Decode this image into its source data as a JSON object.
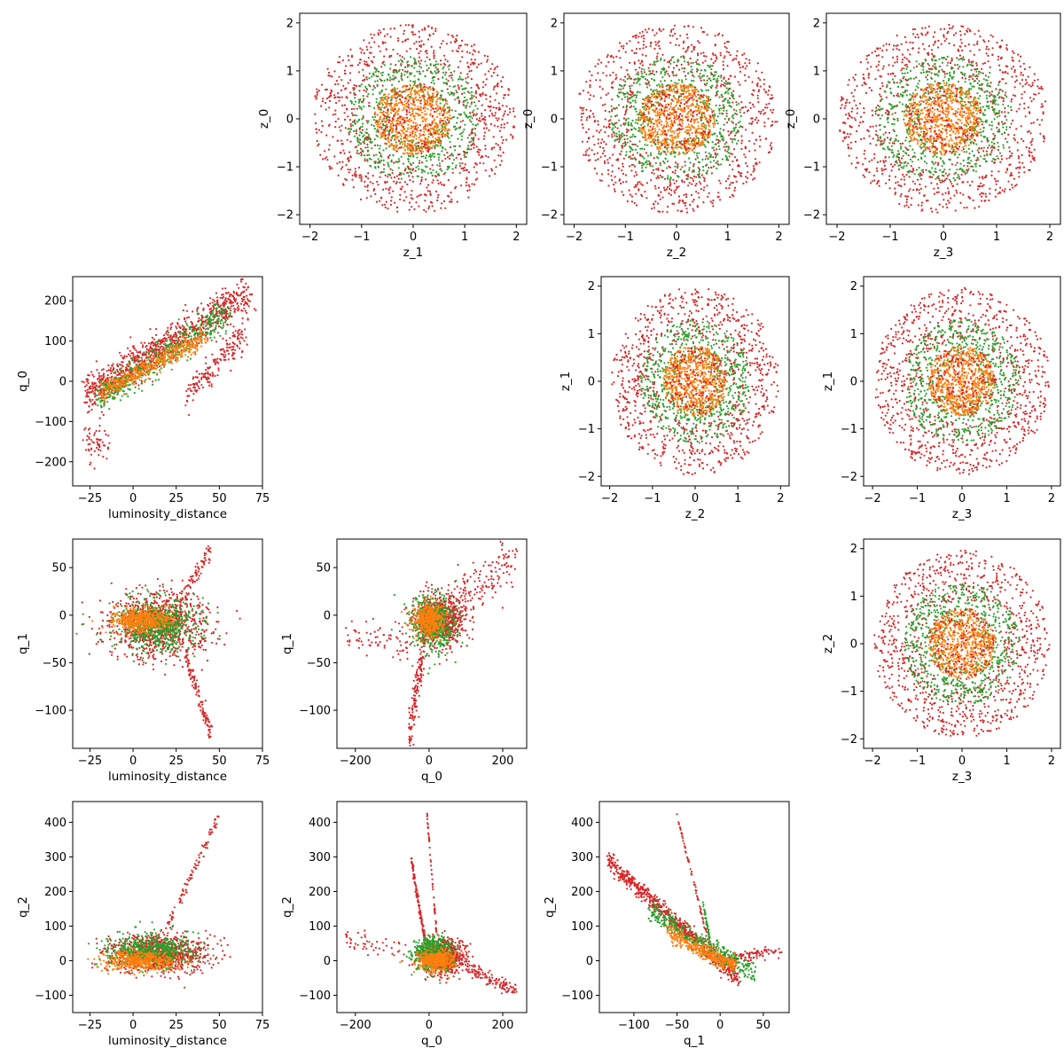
{
  "figure": {
    "background": "#ffffff"
  },
  "series_colors": [
    "#ff7f0e",
    "#2ca02c",
    "#d62728"
  ],
  "chart_data": [
    {
      "id": "z1-z0",
      "type": "scatter",
      "kind": "ring",
      "xlabel": "z_1",
      "ylabel": "z_0",
      "xlim": [
        -2.2,
        2.2
      ],
      "ylim": [
        -2.2,
        2.2
      ],
      "xticks": [
        -2,
        -1,
        0,
        1,
        2
      ],
      "xtick_labels": [
        "−2",
        "−1",
        "0",
        "1",
        "2"
      ],
      "yticks": [
        -2,
        -1,
        0,
        1,
        2
      ],
      "ytick_labels": [
        "−2",
        "−1",
        "0",
        "1",
        "2"
      ],
      "series": [
        {
          "color": "#d62728",
          "shape": "ring",
          "r_range": [
            0.9,
            1.97
          ],
          "count": 900
        },
        {
          "color": "#2ca02c",
          "shape": "ring",
          "r_range": [
            0.45,
            1.3
          ],
          "count": 650
        },
        {
          "color": "#ff7f0e",
          "shape": "ring",
          "r_range": [
            0,
            0.75
          ],
          "count": 650
        },
        {
          "color": "#d62728",
          "shape": "ring",
          "r_range": [
            0,
            0.75
          ],
          "count": 160
        }
      ]
    },
    {
      "id": "z2-z0",
      "type": "scatter",
      "kind": "ring",
      "xlabel": "z_2",
      "ylabel": "z_0",
      "xlim": [
        -2.2,
        2.2
      ],
      "ylim": [
        -2.2,
        2.2
      ],
      "xticks": [
        -2,
        -1,
        0,
        1,
        2
      ],
      "xtick_labels": [
        "−2",
        "−1",
        "0",
        "1",
        "2"
      ],
      "yticks": [
        -2,
        -1,
        0,
        1,
        2
      ],
      "ytick_labels": [
        "−2",
        "−1",
        "0",
        "1",
        "2"
      ],
      "series": [
        {
          "color": "#d62728",
          "shape": "ring",
          "r_range": [
            0.9,
            1.97
          ],
          "count": 900
        },
        {
          "color": "#2ca02c",
          "shape": "ring",
          "r_range": [
            0.45,
            1.3
          ],
          "count": 650
        },
        {
          "color": "#ff7f0e",
          "shape": "ring",
          "r_range": [
            0,
            0.75
          ],
          "count": 650
        },
        {
          "color": "#d62728",
          "shape": "ring",
          "r_range": [
            0,
            0.75
          ],
          "count": 160
        }
      ]
    },
    {
      "id": "z3-z0",
      "type": "scatter",
      "kind": "ring",
      "xlabel": "z_3",
      "ylabel": "z_0",
      "xlim": [
        -2.2,
        2.2
      ],
      "ylim": [
        -2.2,
        2.2
      ],
      "xticks": [
        -2,
        -1,
        0,
        1,
        2
      ],
      "xtick_labels": [
        "−2",
        "−1",
        "0",
        "1",
        "2"
      ],
      "yticks": [
        -2,
        -1,
        0,
        1,
        2
      ],
      "ytick_labels": [
        "−2",
        "−1",
        "0",
        "1",
        "2"
      ],
      "series": [
        {
          "color": "#d62728",
          "shape": "ring",
          "r_range": [
            0.9,
            1.97
          ],
          "count": 900
        },
        {
          "color": "#2ca02c",
          "shape": "ring",
          "r_range": [
            0.45,
            1.3
          ],
          "count": 650
        },
        {
          "color": "#ff7f0e",
          "shape": "ring",
          "r_range": [
            0,
            0.75
          ],
          "count": 650
        },
        {
          "color": "#d62728",
          "shape": "ring",
          "r_range": [
            0,
            0.75
          ],
          "count": 160
        }
      ]
    },
    {
      "id": "ld-q0",
      "type": "scatter",
      "kind": "clusters",
      "xlabel": "luminosity_distance",
      "ylabel": "q_0",
      "xlim": [
        -35,
        75
      ],
      "ylim": [
        -260,
        260
      ],
      "xticks": [
        -25,
        0,
        25,
        50,
        75
      ],
      "xtick_labels": [
        "−25",
        "0",
        "25",
        "50",
        "75"
      ],
      "yticks": [
        -200,
        -100,
        0,
        100,
        200
      ],
      "ytick_labels": [
        "−200",
        "−100",
        "0",
        "100",
        "200"
      ],
      "series": [
        {
          "color": "#d62728",
          "shape": "band",
          "from": [
            -28,
            -35
          ],
          "to": [
            68,
            220
          ],
          "width": 45,
          "count": 900
        },
        {
          "color": "#d62728",
          "shape": "blob",
          "center": [
            -22,
            -150
          ],
          "spread": [
            6,
            40
          ],
          "count": 60
        },
        {
          "color": "#d62728",
          "shape": "band",
          "from": [
            30,
            -40
          ],
          "to": [
            65,
            120
          ],
          "width": 35,
          "count": 180
        },
        {
          "color": "#2ca02c",
          "shape": "band",
          "from": [
            -20,
            -40
          ],
          "to": [
            55,
            170
          ],
          "width": 40,
          "count": 500
        },
        {
          "color": "#ff7f0e",
          "shape": "band",
          "from": [
            -18,
            -25
          ],
          "to": [
            42,
            110
          ],
          "width": 25,
          "count": 450
        }
      ]
    },
    {
      "id": "z2-z1",
      "type": "scatter",
      "kind": "ring",
      "xlabel": "z_2",
      "ylabel": "z_1",
      "xlim": [
        -2.2,
        2.2
      ],
      "ylim": [
        -2.2,
        2.2
      ],
      "xticks": [
        -2,
        -1,
        0,
        1,
        2
      ],
      "xtick_labels": [
        "−2",
        "−1",
        "0",
        "1",
        "2"
      ],
      "yticks": [
        -2,
        -1,
        0,
        1,
        2
      ],
      "ytick_labels": [
        "−2",
        "−1",
        "0",
        "1",
        "2"
      ],
      "series": [
        {
          "color": "#d62728",
          "shape": "ring",
          "r_range": [
            0.9,
            1.97
          ],
          "count": 900
        },
        {
          "color": "#2ca02c",
          "shape": "ring",
          "r_range": [
            0.45,
            1.3
          ],
          "count": 650
        },
        {
          "color": "#ff7f0e",
          "shape": "ring",
          "r_range": [
            0,
            0.75
          ],
          "count": 650
        },
        {
          "color": "#d62728",
          "shape": "ring",
          "r_range": [
            0,
            0.75
          ],
          "count": 160
        }
      ]
    },
    {
      "id": "z3-z1",
      "type": "scatter",
      "kind": "ring",
      "xlabel": "z_3",
      "ylabel": "z_1",
      "xlim": [
        -2.2,
        2.2
      ],
      "ylim": [
        -2.2,
        2.2
      ],
      "xticks": [
        -2,
        -1,
        0,
        1,
        2
      ],
      "xtick_labels": [
        "−2",
        "−1",
        "0",
        "1",
        "2"
      ],
      "yticks": [
        -2,
        -1,
        0,
        1,
        2
      ],
      "ytick_labels": [
        "−2",
        "−1",
        "0",
        "1",
        "2"
      ],
      "series": [
        {
          "color": "#d62728",
          "shape": "ring",
          "r_range": [
            0.9,
            1.97
          ],
          "count": 900
        },
        {
          "color": "#2ca02c",
          "shape": "ring",
          "r_range": [
            0.45,
            1.3
          ],
          "count": 650
        },
        {
          "color": "#ff7f0e",
          "shape": "ring",
          "r_range": [
            0,
            0.75
          ],
          "count": 650
        },
        {
          "color": "#d62728",
          "shape": "ring",
          "r_range": [
            0,
            0.75
          ],
          "count": 160
        }
      ]
    },
    {
      "id": "ld-q1",
      "type": "scatter",
      "kind": "clusters",
      "xlabel": "luminosity_distance",
      "ylabel": "q_1",
      "xlim": [
        -35,
        75
      ],
      "ylim": [
        -140,
        80
      ],
      "xticks": [
        -25,
        0,
        25,
        50,
        75
      ],
      "xtick_labels": [
        "−25",
        "0",
        "25",
        "50",
        "75"
      ],
      "yticks": [
        -100,
        -50,
        0,
        50
      ],
      "ytick_labels": [
        "−100",
        "−50",
        "0",
        "50"
      ],
      "series": [
        {
          "color": "#d62728",
          "shape": "blob",
          "center": [
            15,
            -10
          ],
          "spread": [
            24,
            28
          ],
          "count": 900
        },
        {
          "color": "#d62728",
          "shape": "band",
          "from": [
            30,
            -40
          ],
          "to": [
            45,
            -125
          ],
          "width": 10,
          "count": 120
        },
        {
          "color": "#d62728",
          "shape": "band",
          "from": [
            25,
            10
          ],
          "to": [
            45,
            68
          ],
          "width": 10,
          "count": 80
        },
        {
          "color": "#2ca02c",
          "shape": "blob",
          "center": [
            15,
            -10
          ],
          "spread": [
            20,
            22
          ],
          "count": 650
        },
        {
          "color": "#ff7f0e",
          "shape": "blob",
          "center": [
            5,
            -5
          ],
          "spread": [
            14,
            10
          ],
          "count": 500
        }
      ]
    },
    {
      "id": "q0-q1",
      "type": "scatter",
      "kind": "clusters",
      "xlabel": "q_0",
      "ylabel": "q_1",
      "xlim": [
        -250,
        265
      ],
      "ylim": [
        -140,
        80
      ],
      "xticks": [
        -200,
        0,
        200
      ],
      "xtick_labels": [
        "−200",
        "0",
        "200"
      ],
      "yticks": [
        -100,
        -50,
        0,
        50
      ],
      "ytick_labels": [
        "−100",
        "−50",
        "0",
        "50"
      ],
      "series": [
        {
          "color": "#d62728",
          "shape": "blob",
          "center": [
            30,
            -5
          ],
          "spread": [
            55,
            22
          ],
          "count": 750
        },
        {
          "color": "#d62728",
          "shape": "band",
          "from": [
            -10,
            -30
          ],
          "to": [
            -55,
            -125
          ],
          "width": 25,
          "count": 150
        },
        {
          "color": "#d62728",
          "shape": "band",
          "from": [
            -40,
            -30
          ],
          "to": [
            -230,
            -20
          ],
          "width": 20,
          "count": 70
        },
        {
          "color": "#d62728",
          "shape": "band",
          "from": [
            60,
            10
          ],
          "to": [
            240,
            65
          ],
          "width": 30,
          "count": 150
        },
        {
          "color": "#2ca02c",
          "shape": "blob",
          "center": [
            10,
            -10
          ],
          "spread": [
            50,
            25
          ],
          "count": 600
        },
        {
          "color": "#ff7f0e",
          "shape": "blob",
          "center": [
            0,
            -5
          ],
          "spread": [
            35,
            14
          ],
          "count": 450
        }
      ]
    },
    {
      "id": "z3-z2",
      "type": "scatter",
      "kind": "ring",
      "xlabel": "z_3",
      "ylabel": "z_2",
      "xlim": [
        -2.2,
        2.2
      ],
      "ylim": [
        -2.2,
        2.2
      ],
      "xticks": [
        -2,
        -1,
        0,
        1,
        2
      ],
      "xtick_labels": [
        "−2",
        "−1",
        "0",
        "1",
        "2"
      ],
      "yticks": [
        -2,
        -1,
        0,
        1,
        2
      ],
      "ytick_labels": [
        "−2",
        "−1",
        "0",
        "1",
        "2"
      ],
      "series": [
        {
          "color": "#d62728",
          "shape": "ring",
          "r_range": [
            0.9,
            1.97
          ],
          "count": 900
        },
        {
          "color": "#2ca02c",
          "shape": "ring",
          "r_range": [
            0.45,
            1.3
          ],
          "count": 650
        },
        {
          "color": "#ff7f0e",
          "shape": "ring",
          "r_range": [
            0,
            0.75
          ],
          "count": 650
        },
        {
          "color": "#d62728",
          "shape": "ring",
          "r_range": [
            0,
            0.75
          ],
          "count": 160
        }
      ]
    },
    {
      "id": "ld-q2",
      "type": "scatter",
      "kind": "clusters",
      "xlabel": "luminosity_distance",
      "ylabel": "q_2",
      "xlim": [
        -35,
        75
      ],
      "ylim": [
        -150,
        460
      ],
      "xticks": [
        -25,
        0,
        25,
        50,
        75
      ],
      "xtick_labels": [
        "−25",
        "0",
        "25",
        "50",
        "75"
      ],
      "yticks": [
        -100,
        0,
        100,
        200,
        300,
        400
      ],
      "ytick_labels": [
        "−100",
        "0",
        "100",
        "200",
        "300",
        "400"
      ],
      "series": [
        {
          "color": "#d62728",
          "shape": "blob",
          "center": [
            15,
            20
          ],
          "spread": [
            24,
            45
          ],
          "count": 900
        },
        {
          "color": "#d62728",
          "shape": "band",
          "from": [
            20,
            100
          ],
          "to": [
            50,
            420
          ],
          "width": 20,
          "count": 90
        },
        {
          "color": "#2ca02c",
          "shape": "blob",
          "center": [
            10,
            30
          ],
          "spread": [
            20,
            40
          ],
          "count": 600
        },
        {
          "color": "#ff7f0e",
          "shape": "blob",
          "center": [
            5,
            0
          ],
          "spread": [
            18,
            25
          ],
          "count": 450
        }
      ]
    },
    {
      "id": "q0-q2",
      "type": "scatter",
      "kind": "clusters",
      "xlabel": "q_0",
      "ylabel": "q_2",
      "xlim": [
        -250,
        265
      ],
      "ylim": [
        -150,
        460
      ],
      "xticks": [
        -200,
        0,
        200
      ],
      "xtick_labels": [
        "−200",
        "0",
        "200"
      ],
      "yticks": [
        -100,
        0,
        100,
        200,
        300,
        400
      ],
      "ytick_labels": [
        "−100",
        "0",
        "100",
        "200",
        "300",
        "400"
      ],
      "series": [
        {
          "color": "#d62728",
          "shape": "blob",
          "center": [
            40,
            10
          ],
          "spread": [
            50,
            40
          ],
          "count": 750
        },
        {
          "color": "#d62728",
          "shape": "band",
          "from": [
            -10,
            50
          ],
          "to": [
            -50,
            300
          ],
          "width": 18,
          "count": 110
        },
        {
          "color": "#d62728",
          "shape": "band",
          "from": [
            20,
            80
          ],
          "to": [
            -5,
            420
          ],
          "width": 10,
          "count": 50
        },
        {
          "color": "#d62728",
          "shape": "band",
          "from": [
            100,
            -20
          ],
          "to": [
            240,
            -90
          ],
          "width": 18,
          "count": 120
        },
        {
          "color": "#d62728",
          "shape": "band",
          "from": [
            -60,
            20
          ],
          "to": [
            -230,
            60
          ],
          "width": 30,
          "count": 50
        },
        {
          "color": "#2ca02c",
          "shape": "blob",
          "center": [
            10,
            20
          ],
          "spread": [
            45,
            40
          ],
          "count": 550
        },
        {
          "color": "#ff7f0e",
          "shape": "blob",
          "center": [
            20,
            0
          ],
          "spread": [
            40,
            25
          ],
          "count": 450
        }
      ]
    },
    {
      "id": "q1-q2",
      "type": "scatter",
      "kind": "clusters",
      "xlabel": "q_1",
      "ylabel": "q_2",
      "xlim": [
        -140,
        80
      ],
      "ylim": [
        -150,
        460
      ],
      "xticks": [
        -100,
        -50,
        0,
        50
      ],
      "xtick_labels": [
        "−100",
        "−50",
        "0",
        "50"
      ],
      "yticks": [
        -100,
        0,
        100,
        200,
        300,
        400
      ],
      "ytick_labels": [
        "−100",
        "0",
        "100",
        "200",
        "300",
        "400"
      ],
      "series": [
        {
          "color": "#d62728",
          "shape": "band",
          "from": [
            -130,
            290
          ],
          "to": [
            20,
            -50
          ],
          "width": 25,
          "count": 650
        },
        {
          "color": "#d62728",
          "shape": "band",
          "from": [
            -50,
            420
          ],
          "to": [
            -15,
            70
          ],
          "width": 8,
          "count": 60
        },
        {
          "color": "#d62728",
          "shape": "band",
          "from": [
            0,
            0
          ],
          "to": [
            70,
            30
          ],
          "width": 20,
          "count": 100
        },
        {
          "color": "#2ca02c",
          "shape": "band",
          "from": [
            -80,
            140
          ],
          "to": [
            40,
            -40
          ],
          "width": 30,
          "count": 400
        },
        {
          "color": "#2ca02c",
          "shape": "band",
          "from": [
            -20,
            170
          ],
          "to": [
            -10,
            30
          ],
          "width": 10,
          "count": 60
        },
        {
          "color": "#ff7f0e",
          "shape": "band",
          "from": [
            -60,
            80
          ],
          "to": [
            20,
            -20
          ],
          "width": 25,
          "count": 350
        }
      ]
    }
  ]
}
